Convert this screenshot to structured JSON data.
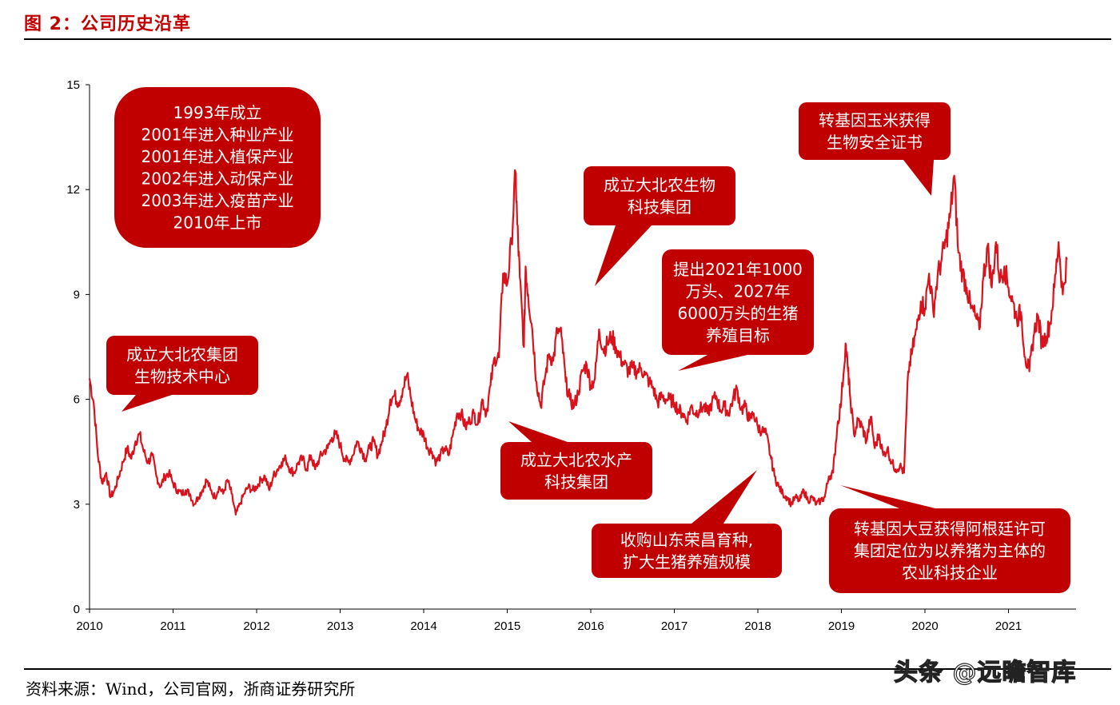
{
  "figure": {
    "title": "图 2：公司历史沿革",
    "source": "资料来源：Wind，公司官网，浙商证券研究所",
    "watermark": "头条 @远瞻智库"
  },
  "colors": {
    "accent": "#c00000",
    "line": "#d9121b",
    "text": "#000000"
  },
  "chart_data": {
    "type": "line",
    "title": "",
    "xlabel": "",
    "ylabel": "",
    "ylim": [
      0,
      15
    ],
    "xlim": [
      2010,
      2021.7
    ],
    "yticks": [
      "0",
      "3",
      "6",
      "9",
      "12",
      "15"
    ],
    "xticks": [
      "2010",
      "2011",
      "2012",
      "2013",
      "2014",
      "2015",
      "2016",
      "2017",
      "2018",
      "2019",
      "2020",
      "2021"
    ],
    "grid": false,
    "series": [
      {
        "points": [
          [
            2010.0,
            6.6
          ],
          [
            2010.05,
            5.9
          ],
          [
            2010.1,
            4.4
          ],
          [
            2010.15,
            3.6
          ],
          [
            2010.2,
            3.9
          ],
          [
            2010.25,
            3.2
          ],
          [
            2010.3,
            3.4
          ],
          [
            2010.35,
            3.8
          ],
          [
            2010.4,
            4.2
          ],
          [
            2010.45,
            4.6
          ],
          [
            2010.5,
            4.3
          ],
          [
            2010.55,
            4.8
          ],
          [
            2010.6,
            5.0
          ],
          [
            2010.65,
            4.5
          ],
          [
            2010.7,
            4.2
          ],
          [
            2010.75,
            4.4
          ],
          [
            2010.8,
            3.8
          ],
          [
            2010.85,
            3.5
          ],
          [
            2010.9,
            3.8
          ],
          [
            2010.95,
            3.9
          ],
          [
            2011.0,
            3.6
          ],
          [
            2011.05,
            3.4
          ],
          [
            2011.1,
            3.3
          ],
          [
            2011.15,
            3.4
          ],
          [
            2011.2,
            3.3
          ],
          [
            2011.25,
            3.0
          ],
          [
            2011.3,
            3.2
          ],
          [
            2011.35,
            3.4
          ],
          [
            2011.4,
            3.7
          ],
          [
            2011.45,
            3.4
          ],
          [
            2011.5,
            3.2
          ],
          [
            2011.55,
            3.5
          ],
          [
            2011.6,
            3.3
          ],
          [
            2011.65,
            3.7
          ],
          [
            2011.7,
            3.3
          ],
          [
            2011.75,
            2.7
          ],
          [
            2011.8,
            3.0
          ],
          [
            2011.85,
            3.3
          ],
          [
            2011.9,
            3.5
          ],
          [
            2011.95,
            3.4
          ],
          [
            2012.0,
            3.5
          ],
          [
            2012.05,
            3.7
          ],
          [
            2012.1,
            3.8
          ],
          [
            2012.15,
            3.4
          ],
          [
            2012.2,
            3.8
          ],
          [
            2012.25,
            4.0
          ],
          [
            2012.3,
            4.2
          ],
          [
            2012.35,
            4.3
          ],
          [
            2012.4,
            4.0
          ],
          [
            2012.45,
            3.9
          ],
          [
            2012.5,
            4.2
          ],
          [
            2012.55,
            4.3
          ],
          [
            2012.6,
            4.0
          ],
          [
            2012.65,
            4.4
          ],
          [
            2012.7,
            4.0
          ],
          [
            2012.75,
            4.3
          ],
          [
            2012.8,
            4.5
          ],
          [
            2012.85,
            4.6
          ],
          [
            2012.9,
            4.9
          ],
          [
            2012.95,
            5.0
          ],
          [
            2013.0,
            4.7
          ],
          [
            2013.05,
            4.3
          ],
          [
            2013.1,
            4.2
          ],
          [
            2013.15,
            4.4
          ],
          [
            2013.2,
            4.8
          ],
          [
            2013.25,
            4.6
          ],
          [
            2013.3,
            4.3
          ],
          [
            2013.35,
            4.6
          ],
          [
            2013.4,
            4.8
          ],
          [
            2013.45,
            4.4
          ],
          [
            2013.5,
            4.8
          ],
          [
            2013.55,
            5.2
          ],
          [
            2013.6,
            6.0
          ],
          [
            2013.65,
            6.1
          ],
          [
            2013.7,
            5.9
          ],
          [
            2013.75,
            6.3
          ],
          [
            2013.8,
            6.7
          ],
          [
            2013.85,
            6.0
          ],
          [
            2013.9,
            5.4
          ],
          [
            2013.95,
            5.1
          ],
          [
            2014.0,
            5.0
          ],
          [
            2014.05,
            4.6
          ],
          [
            2014.1,
            4.5
          ],
          [
            2014.15,
            4.2
          ],
          [
            2014.2,
            4.4
          ],
          [
            2014.25,
            4.6
          ],
          [
            2014.3,
            4.4
          ],
          [
            2014.35,
            5.0
          ],
          [
            2014.4,
            5.6
          ],
          [
            2014.45,
            5.6
          ],
          [
            2014.5,
            5.2
          ],
          [
            2014.55,
            5.4
          ],
          [
            2014.6,
            5.6
          ],
          [
            2014.65,
            5.3
          ],
          [
            2014.7,
            6.0
          ],
          [
            2014.75,
            5.6
          ],
          [
            2014.8,
            6.4
          ],
          [
            2014.85,
            7.2
          ],
          [
            2014.9,
            7.2
          ],
          [
            2014.95,
            9.6
          ],
          [
            2015.0,
            9.3
          ],
          [
            2015.05,
            10.5
          ],
          [
            2015.1,
            12.5
          ],
          [
            2015.12,
            11.0
          ],
          [
            2015.15,
            9.5
          ],
          [
            2015.2,
            7.5
          ],
          [
            2015.22,
            9.8
          ],
          [
            2015.25,
            9.0
          ],
          [
            2015.3,
            8.0
          ],
          [
            2015.35,
            6.5
          ],
          [
            2015.4,
            5.8
          ],
          [
            2015.45,
            6.6
          ],
          [
            2015.5,
            7.3
          ],
          [
            2015.55,
            7.1
          ],
          [
            2015.6,
            8.0
          ],
          [
            2015.65,
            7.8
          ],
          [
            2015.7,
            6.5
          ],
          [
            2015.75,
            6.0
          ],
          [
            2015.8,
            5.8
          ],
          [
            2015.85,
            6.2
          ],
          [
            2015.9,
            6.8
          ],
          [
            2015.95,
            7.0
          ],
          [
            2016.0,
            6.4
          ],
          [
            2016.05,
            6.6
          ],
          [
            2016.1,
            8.0
          ],
          [
            2016.15,
            7.4
          ],
          [
            2016.2,
            7.6
          ],
          [
            2016.25,
            7.8
          ],
          [
            2016.3,
            7.5
          ],
          [
            2016.35,
            7.2
          ],
          [
            2016.4,
            7.0
          ],
          [
            2016.45,
            6.8
          ],
          [
            2016.5,
            6.9
          ],
          [
            2016.55,
            6.8
          ],
          [
            2016.6,
            6.9
          ],
          [
            2016.65,
            6.7
          ],
          [
            2016.7,
            6.5
          ],
          [
            2016.75,
            6.3
          ],
          [
            2016.8,
            5.9
          ],
          [
            2016.85,
            6.1
          ],
          [
            2016.9,
            6.0
          ],
          [
            2016.95,
            6.0
          ],
          [
            2017.0,
            5.9
          ],
          [
            2017.05,
            5.7
          ],
          [
            2017.1,
            5.6
          ],
          [
            2017.15,
            5.4
          ],
          [
            2017.2,
            5.8
          ],
          [
            2017.25,
            5.6
          ],
          [
            2017.3,
            5.7
          ],
          [
            2017.35,
            5.8
          ],
          [
            2017.4,
            5.6
          ],
          [
            2017.45,
            5.9
          ],
          [
            2017.5,
            6.1
          ],
          [
            2017.55,
            5.7
          ],
          [
            2017.6,
            5.8
          ],
          [
            2017.65,
            5.6
          ],
          [
            2017.7,
            6.0
          ],
          [
            2017.75,
            6.3
          ],
          [
            2017.8,
            5.7
          ],
          [
            2017.85,
            5.8
          ],
          [
            2017.9,
            5.4
          ],
          [
            2017.95,
            5.6
          ],
          [
            2018.0,
            5.2
          ],
          [
            2018.05,
            5.1
          ],
          [
            2018.1,
            5.0
          ],
          [
            2018.15,
            4.4
          ],
          [
            2018.2,
            3.8
          ],
          [
            2018.25,
            3.5
          ],
          [
            2018.3,
            3.3
          ],
          [
            2018.35,
            3.2
          ],
          [
            2018.4,
            3.0
          ],
          [
            2018.45,
            3.2
          ],
          [
            2018.5,
            3.1
          ],
          [
            2018.55,
            3.4
          ],
          [
            2018.6,
            3.1
          ],
          [
            2018.65,
            3.2
          ],
          [
            2018.7,
            3.0
          ],
          [
            2018.75,
            3.1
          ],
          [
            2018.8,
            3.2
          ],
          [
            2018.85,
            3.8
          ],
          [
            2018.9,
            3.9
          ],
          [
            2018.95,
            5.2
          ],
          [
            2019.0,
            6.0
          ],
          [
            2019.05,
            7.6
          ],
          [
            2019.08,
            6.8
          ],
          [
            2019.1,
            6.2
          ],
          [
            2019.15,
            5.0
          ],
          [
            2019.2,
            5.4
          ],
          [
            2019.25,
            5.2
          ],
          [
            2019.3,
            4.8
          ],
          [
            2019.35,
            5.5
          ],
          [
            2019.4,
            4.6
          ],
          [
            2019.45,
            5.0
          ],
          [
            2019.5,
            4.4
          ],
          [
            2019.55,
            4.6
          ],
          [
            2019.6,
            4.2
          ],
          [
            2019.65,
            4.0
          ],
          [
            2019.7,
            4.1
          ],
          [
            2019.75,
            3.9
          ],
          [
            2019.8,
            6.8
          ],
          [
            2019.85,
            7.4
          ],
          [
            2019.9,
            8.0
          ],
          [
            2019.95,
            8.8
          ],
          [
            2020.0,
            8.6
          ],
          [
            2020.05,
            9.6
          ],
          [
            2020.1,
            8.5
          ],
          [
            2020.15,
            9.5
          ],
          [
            2020.2,
            10.0
          ],
          [
            2020.25,
            10.5
          ],
          [
            2020.3,
            11.2
          ],
          [
            2020.35,
            12.4
          ],
          [
            2020.4,
            10.2
          ],
          [
            2020.45,
            9.6
          ],
          [
            2020.5,
            9.2
          ],
          [
            2020.55,
            8.6
          ],
          [
            2020.6,
            8.4
          ],
          [
            2020.65,
            8.0
          ],
          [
            2020.7,
            9.5
          ],
          [
            2020.75,
            10.4
          ],
          [
            2020.8,
            9.2
          ],
          [
            2020.85,
            10.5
          ],
          [
            2020.9,
            9.4
          ],
          [
            2020.95,
            9.8
          ],
          [
            2021.0,
            9.2
          ],
          [
            2021.05,
            8.8
          ],
          [
            2021.1,
            8.3
          ],
          [
            2021.15,
            8.5
          ],
          [
            2021.2,
            7.2
          ],
          [
            2021.25,
            6.8
          ],
          [
            2021.3,
            7.8
          ],
          [
            2021.35,
            8.4
          ],
          [
            2021.4,
            7.6
          ],
          [
            2021.45,
            7.8
          ],
          [
            2021.5,
            8.2
          ],
          [
            2021.55,
            9.2
          ],
          [
            2021.6,
            10.5
          ],
          [
            2021.65,
            9.0
          ],
          [
            2021.7,
            10.0
          ]
        ]
      }
    ],
    "annotations": [
      {
        "lines": [
          "1993年成立",
          "2001年进入种业产业",
          "2001年进入植保产业",
          "2002年进入动保产业",
          "2003年进入疫苗产业",
          "2010年上市"
        ]
      },
      {
        "lines": [
          "成立大北农集团",
          "生物技术中心"
        ]
      },
      {
        "lines": [
          "成立大北农水产",
          "科技集团"
        ]
      },
      {
        "lines": [
          "成立大北农生物",
          "科技集团"
        ]
      },
      {
        "lines": [
          "提出2021年1000",
          "万头、2027年",
          "6000万头的生猪",
          "养殖目标"
        ]
      },
      {
        "lines": [
          "收购山东荣昌育种,",
          "扩大生猪养殖规模"
        ]
      },
      {
        "lines": [
          "转基因玉米获得",
          "生物安全证书"
        ]
      },
      {
        "lines": [
          "转基因大豆获得阿根廷许可",
          "集团定位为以养猪为主体的",
          "农业科技企业"
        ]
      }
    ]
  }
}
